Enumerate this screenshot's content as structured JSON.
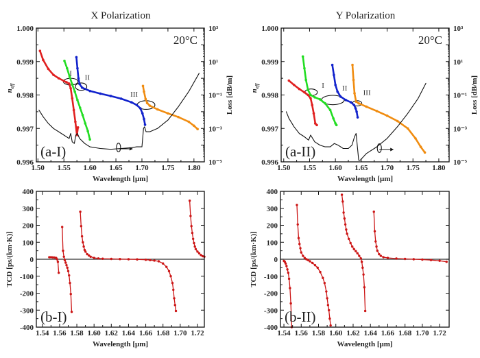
{
  "chart_data": [
    {
      "id": "a-I",
      "type": "line",
      "title": "X Polarization",
      "panel_label": "(a-I)",
      "annotation": "20°C",
      "xlabel": "Wavelength [μm]",
      "ylabel": "n_eff",
      "y2label": "Loss [dB/m]",
      "xlim": [
        1.497,
        1.82
      ],
      "ylim": [
        0.996,
        1.0
      ],
      "y2lim_log10": [
        -5,
        3
      ],
      "xticks": [
        1.5,
        1.55,
        1.6,
        1.65,
        1.7,
        1.75,
        1.8
      ],
      "xtick_labels": [
        "1.50",
        "1.55",
        "1.60",
        "1.65",
        "1.70",
        "1.75",
        "1.80"
      ],
      "yticks": [
        0.996,
        0.997,
        0.998,
        0.999,
        1.0
      ],
      "ytick_labels": [
        "0.996",
        "0.997",
        "0.998",
        "0.999",
        "1.000"
      ],
      "y2ticks_log10": [
        -5,
        -3,
        -1,
        1,
        3
      ],
      "y2tick_labels": [
        "10⁻⁵",
        "10⁻³",
        "10⁻¹",
        "10¹",
        "10³"
      ],
      "region_labels": [
        {
          "text": "I",
          "x": 1.563,
          "y": 0.99857
        },
        {
          "text": "II",
          "x": 1.595,
          "y": 0.99845
        },
        {
          "text": "III",
          "x": 1.685,
          "y": 0.99795
        }
      ],
      "ellipses": [
        {
          "cx": 1.563,
          "cy": 0.9984,
          "rx": 0.014,
          "ry": 0.0001
        },
        {
          "cx": 1.583,
          "cy": 0.99825,
          "rx": 0.011,
          "ry": 0.00011
        },
        {
          "cx": 1.708,
          "cy": 0.9977,
          "rx": 0.017,
          "ry": 0.00013
        },
        {
          "cx": 1.655,
          "cy": 0.99643,
          "rx": 0.004,
          "ry": 0.00013
        }
      ],
      "series": [
        {
          "name": "mode-red",
          "color": "#e02020",
          "axis": "left",
          "x": [
            1.504,
            1.51,
            1.52,
            1.53,
            1.54,
            1.55,
            1.555,
            1.56,
            1.563,
            1.566,
            1.569,
            1.572,
            1.575,
            1.577
          ],
          "y": [
            0.99932,
            0.99905,
            0.99878,
            0.9986,
            0.9985,
            0.99842,
            0.99838,
            0.99834,
            0.9982,
            0.9979,
            0.99755,
            0.9972,
            0.9968,
            0.99703
          ]
        },
        {
          "name": "mode-green",
          "color": "#22dd22",
          "axis": "left",
          "x": [
            1.551,
            1.556,
            1.561,
            1.566,
            1.571,
            1.576,
            1.581,
            1.586,
            1.591,
            1.596,
            1.6
          ],
          "y": [
            0.99902,
            0.9988,
            0.99855,
            0.99832,
            0.9981,
            0.99785,
            0.99762,
            0.9974,
            0.99715,
            0.99692,
            0.99667
          ]
        },
        {
          "name": "mode-blue",
          "color": "#1122cc",
          "axis": "left",
          "x": [
            1.574,
            1.576,
            1.578,
            1.58,
            1.585,
            1.6,
            1.62,
            1.64,
            1.66,
            1.68,
            1.69,
            1.697,
            1.701,
            1.704,
            1.706
          ],
          "y": [
            0.99913,
            0.9988,
            0.9985,
            0.99833,
            0.99822,
            0.99812,
            0.99804,
            0.99797,
            0.99789,
            0.99778,
            0.9977,
            0.9976,
            0.99745,
            0.99728,
            0.99711
          ]
        },
        {
          "name": "mode-orange",
          "color": "#f08c10",
          "axis": "left",
          "x": [
            1.702,
            1.704,
            1.707,
            1.71,
            1.715,
            1.73,
            1.75,
            1.77,
            1.79,
            1.8,
            1.807
          ],
          "y": [
            0.99827,
            0.9981,
            0.99788,
            0.99776,
            0.99768,
            0.99757,
            0.99745,
            0.99734,
            0.9972,
            0.99708,
            0.99698
          ]
        },
        {
          "name": "loss",
          "color": "#111111",
          "axis": "right",
          "log10": true,
          "x": [
            1.502,
            1.51,
            1.52,
            1.53,
            1.54,
            1.55,
            1.56,
            1.563,
            1.566,
            1.57,
            1.573,
            1.576,
            1.58,
            1.59,
            1.6,
            1.62,
            1.64,
            1.66,
            1.68,
            1.69,
            1.7,
            1.703,
            1.705,
            1.708,
            1.715,
            1.73,
            1.75,
            1.77,
            1.79,
            1.81
          ],
          "y": [
            -1.9,
            -2.3,
            -2.7,
            -3.0,
            -3.2,
            -3.4,
            -3.6,
            -3.3,
            -3.8,
            -3.9,
            -3.4,
            -3.3,
            -3.6,
            -3.9,
            -4.1,
            -4.2,
            -4.25,
            -4.2,
            -4.15,
            -4.1,
            -4.1,
            -3.0,
            -2.9,
            -3.2,
            -3.2,
            -3.0,
            -2.5,
            -1.7,
            -0.8,
            0.3
          ]
        }
      ]
    },
    {
      "id": "a-II",
      "type": "line",
      "title": "Y Polarization",
      "panel_label": "(a-II)",
      "annotation": "20°C",
      "xlabel": "Wavelength [μm]",
      "ylabel": "n_eff",
      "y2label": "Loss [dB/m]",
      "xlim": [
        1.495,
        1.82
      ],
      "ylim": [
        0.996,
        1.0
      ],
      "y2lim_log10": [
        -5,
        3
      ],
      "xticks": [
        1.5,
        1.55,
        1.6,
        1.65,
        1.7,
        1.75,
        1.8
      ],
      "xtick_labels": [
        "1.50",
        "1.55",
        "1.60",
        "1.65",
        "1.70",
        "1.75",
        "1.80"
      ],
      "yticks": [
        0.996,
        0.997,
        0.998,
        0.999,
        1.0
      ],
      "ytick_labels": [
        "0.996",
        "0.997",
        "0.998",
        "0.999",
        "1.000"
      ],
      "y2ticks_log10": [
        -5,
        -3,
        -1,
        1,
        3
      ],
      "y2tick_labels": [
        "10⁻⁵",
        "10⁻³",
        "10⁻¹",
        "10¹",
        "10³"
      ],
      "region_labels": [
        {
          "text": "I",
          "x": 1.576,
          "y": 0.99822
        },
        {
          "text": "II",
          "x": 1.618,
          "y": 0.99813
        },
        {
          "text": "III",
          "x": 1.661,
          "y": 0.998
        }
      ],
      "ellipses": [
        {
          "cx": 1.553,
          "cy": 0.99808,
          "rx": 0.012,
          "ry": 0.0001
        },
        {
          "cx": 1.595,
          "cy": 0.99785,
          "rx": 0.022,
          "ry": 0.00014
        },
        {
          "cx": 1.642,
          "cy": 0.99775,
          "rx": 0.009,
          "ry": 8e-05
        },
        {
          "cx": 1.685,
          "cy": 0.99641,
          "rx": 0.004,
          "ry": 0.00013
        }
      ],
      "series": [
        {
          "name": "mode-red",
          "color": "#e02020",
          "axis": "left",
          "x": [
            1.51,
            1.52,
            1.53,
            1.54,
            1.547,
            1.552,
            1.555,
            1.558,
            1.561,
            1.564
          ],
          "y": [
            0.99843,
            0.9983,
            0.99818,
            0.99808,
            0.998,
            0.9979,
            0.9977,
            0.99745,
            0.99715,
            0.9971
          ]
        },
        {
          "name": "mode-green",
          "color": "#22dd22",
          "axis": "left",
          "x": [
            1.537,
            1.54,
            1.543,
            1.547,
            1.552,
            1.56,
            1.57,
            1.58,
            1.59,
            1.596,
            1.6,
            1.602
          ],
          "y": [
            0.99915,
            0.9988,
            0.99845,
            0.99815,
            0.998,
            0.99793,
            0.99787,
            0.99775,
            0.99755,
            0.9973,
            0.99715,
            0.9971
          ]
        },
        {
          "name": "mode-blue",
          "color": "#1122cc",
          "axis": "left",
          "x": [
            1.594,
            1.597,
            1.6,
            1.604,
            1.61,
            1.62,
            1.63,
            1.636,
            1.639,
            1.641,
            1.643
          ],
          "y": [
            0.9989,
            0.9986,
            0.9983,
            0.9981,
            0.99795,
            0.99785,
            0.99778,
            0.9977,
            0.9976,
            0.9975,
            0.99733
          ]
        },
        {
          "name": "mode-orange",
          "color": "#f08c10",
          "axis": "left",
          "x": [
            1.633,
            1.635,
            1.637,
            1.64,
            1.645,
            1.66,
            1.68,
            1.7,
            1.72,
            1.74,
            1.755,
            1.765,
            1.773
          ],
          "y": [
            0.9989,
            0.99845,
            0.99805,
            0.9978,
            0.99775,
            0.99765,
            0.99752,
            0.99738,
            0.99722,
            0.997,
            0.9967,
            0.99645,
            0.99628
          ]
        },
        {
          "name": "loss",
          "color": "#111111",
          "axis": "right",
          "log10": true,
          "x": [
            1.505,
            1.51,
            1.52,
            1.53,
            1.54,
            1.548,
            1.552,
            1.56,
            1.57,
            1.58,
            1.59,
            1.598,
            1.605,
            1.615,
            1.625,
            1.632,
            1.637,
            1.64,
            1.645,
            1.648,
            1.66,
            1.68,
            1.7,
            1.72,
            1.74,
            1.76,
            1.775
          ],
          "y": [
            -2.0,
            -2.4,
            -2.9,
            -3.3,
            -3.5,
            -3.7,
            -3.4,
            -3.8,
            -4.0,
            -4.1,
            -4.1,
            -3.9,
            -4.0,
            -4.2,
            -4.2,
            -4.0,
            -3.5,
            -3.3,
            -4.9,
            -4.9,
            -4.5,
            -4.1,
            -3.6,
            -2.9,
            -2.1,
            -1.2,
            -0.3
          ]
        }
      ]
    },
    {
      "id": "b-I",
      "type": "line",
      "title": "",
      "panel_label": "(b-I)",
      "xlabel": "Wavelength [μm]",
      "ylabel": "TCD [ps/(km·K)]",
      "xlim": [
        1.533,
        1.728
      ],
      "ylim": [
        -400,
        400
      ],
      "xticks": [
        1.54,
        1.56,
        1.58,
        1.6,
        1.62,
        1.64,
        1.66,
        1.68,
        1.7,
        1.72
      ],
      "xtick_labels": [
        "1.54",
        "1.56",
        "1.58",
        "1.60",
        "1.62",
        "1.64",
        "1.66",
        "1.68",
        "1.70",
        "1.72"
      ],
      "yticks": [
        -400,
        -300,
        -200,
        -100,
        0,
        100,
        200,
        300,
        400
      ],
      "ytick_labels": [
        "-400",
        "-300",
        "-200",
        "-100",
        "0",
        "100",
        "200",
        "300",
        "400"
      ],
      "zero_line": true,
      "series": [
        {
          "name": "tcd-seg-1",
          "color": "#cc1515",
          "x": [
            1.548,
            1.55,
            1.552,
            1.554,
            1.556,
            1.557,
            1.558,
            1.559
          ],
          "y": [
            12,
            12,
            11,
            10,
            8,
            0,
            -15,
            -80
          ]
        },
        {
          "name": "tcd-seg-2",
          "color": "#cc1515",
          "x": [
            1.563,
            1.564,
            1.565,
            1.566,
            1.567,
            1.568,
            1.569,
            1.57,
            1.571,
            1.572,
            1.573,
            1.574
          ],
          "y": [
            190,
            50,
            15,
            -5,
            -20,
            -35,
            -50,
            -70,
            -95,
            -140,
            -205,
            -310
          ]
        },
        {
          "name": "tcd-seg-3",
          "color": "#cc1515",
          "x": [
            1.584,
            1.585,
            1.586,
            1.587,
            1.588,
            1.589,
            1.59,
            1.592,
            1.594,
            1.596,
            1.6,
            1.605,
            1.61,
            1.62,
            1.63,
            1.64,
            1.65,
            1.66,
            1.665,
            1.67,
            1.675,
            1.68,
            1.684,
            1.687,
            1.689,
            1.691,
            1.692,
            1.693,
            1.694,
            1.695
          ],
          "y": [
            280,
            195,
            135,
            100,
            75,
            55,
            45,
            30,
            22,
            15,
            8,
            5,
            3,
            2,
            1,
            0,
            -1,
            -3,
            -5,
            -8,
            -12,
            -25,
            -45,
            -70,
            -100,
            -140,
            -180,
            -230,
            -270,
            -305
          ]
        },
        {
          "name": "tcd-seg-4",
          "color": "#cc1515",
          "x": [
            1.711,
            1.712,
            1.713,
            1.714,
            1.715,
            1.716,
            1.717,
            1.718,
            1.72,
            1.722,
            1.724,
            1.726,
            1.728
          ],
          "y": [
            345,
            255,
            195,
            155,
            120,
            95,
            75,
            60,
            45,
            35,
            25,
            18,
            15
          ]
        }
      ]
    },
    {
      "id": "b-II",
      "type": "line",
      "title": "",
      "panel_label": "(b-II)",
      "xlabel": "Wavelength [μm]",
      "ylabel": "TCD [ps/(km·K)]",
      "xlim": [
        1.536,
        1.731
      ],
      "ylim": [
        -400,
        400
      ],
      "xticks": [
        1.54,
        1.56,
        1.58,
        1.6,
        1.62,
        1.64,
        1.66,
        1.68,
        1.7,
        1.72
      ],
      "xtick_labels": [
        "1.54",
        "1.56",
        "1.58",
        "1.60",
        "1.62",
        "1.64",
        "1.66",
        "1.68",
        "1.70",
        "1.72"
      ],
      "yticks": [
        -400,
        -300,
        -200,
        -100,
        0,
        100,
        200,
        300,
        400
      ],
      "ytick_labels": [
        "-400",
        "-300",
        "-200",
        "-100",
        "0",
        "100",
        "200",
        "300",
        "400"
      ],
      "zero_line": true,
      "series": [
        {
          "name": "tcd-seg-1",
          "color": "#cc1515",
          "x": [
            1.54,
            1.541,
            1.542,
            1.543,
            1.544,
            1.545,
            1.546,
            1.547,
            1.548,
            1.549
          ],
          "y": [
            -10,
            -15,
            -25,
            -40,
            -60,
            -80,
            -115,
            -170,
            -260,
            -400
          ]
        },
        {
          "name": "tcd-seg-2",
          "color": "#cc1515",
          "x": [
            1.555,
            1.556,
            1.557,
            1.558,
            1.559,
            1.56,
            1.562,
            1.564,
            1.566,
            1.568,
            1.57,
            1.573,
            1.576,
            1.579,
            1.582,
            1.585,
            1.587,
            1.589,
            1.59,
            1.591,
            1.592,
            1.593,
            1.594
          ],
          "y": [
            320,
            205,
            125,
            90,
            65,
            40,
            20,
            8,
            0,
            -5,
            -12,
            -22,
            -35,
            -50,
            -75,
            -110,
            -140,
            -190,
            -230,
            -270,
            -300,
            -350,
            -390
          ]
        },
        {
          "name": "tcd-seg-3",
          "color": "#cc1515",
          "x": [
            1.607,
            1.608,
            1.609,
            1.61,
            1.611,
            1.612,
            1.613,
            1.615,
            1.617,
            1.619,
            1.621,
            1.623,
            1.625,
            1.627,
            1.629,
            1.63,
            1.631,
            1.632,
            1.633,
            1.634
          ],
          "y": [
            380,
            340,
            275,
            240,
            205,
            175,
            150,
            120,
            95,
            75,
            60,
            48,
            35,
            20,
            5,
            -15,
            -50,
            -90,
            -165,
            -305
          ]
        },
        {
          "name": "tcd-seg-4",
          "color": "#cc1515",
          "x": [
            1.644,
            1.645,
            1.646,
            1.647,
            1.648,
            1.65,
            1.652,
            1.655,
            1.66,
            1.67,
            1.68,
            1.69,
            1.7,
            1.71,
            1.72,
            1.728
          ],
          "y": [
            280,
            165,
            105,
            75,
            50,
            30,
            20,
            12,
            8,
            4,
            2,
            0,
            -2,
            -5,
            -9,
            -15
          ]
        }
      ]
    }
  ]
}
